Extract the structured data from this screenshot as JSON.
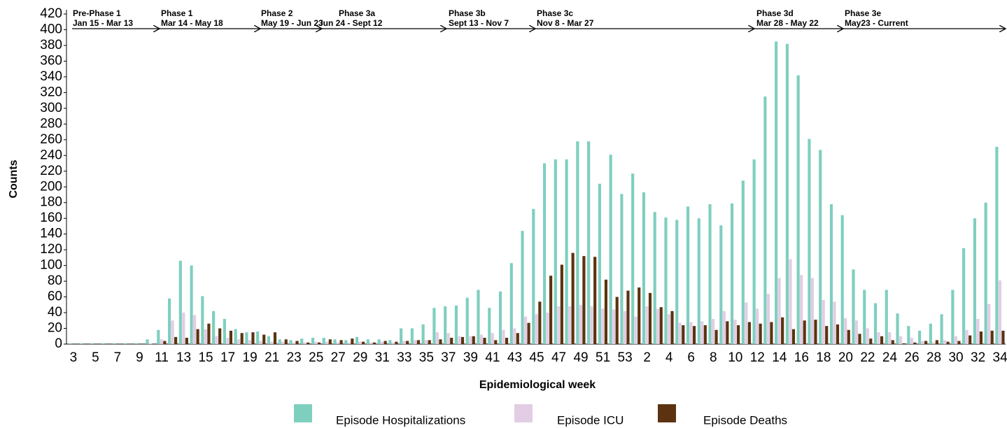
{
  "chart_data": {
    "type": "bar",
    "y_label": "Counts",
    "x_label": "Epidemiological week",
    "categories": [
      "3",
      null,
      "5",
      null,
      "7",
      null,
      "9",
      null,
      "11",
      null,
      "13",
      null,
      "15",
      null,
      "17",
      null,
      "19",
      null,
      "21",
      null,
      "23",
      null,
      "25",
      null,
      "27",
      null,
      "29",
      null,
      "31",
      null,
      "33",
      null,
      "35",
      null,
      "37",
      null,
      "39",
      null,
      "41",
      null,
      "43",
      null,
      "45",
      null,
      "47",
      null,
      "49",
      null,
      "51",
      null,
      "53",
      null,
      "2",
      null,
      "4",
      null,
      "6",
      null,
      "8",
      null,
      "10",
      null,
      "12",
      null,
      "14",
      null,
      "16",
      null,
      "18",
      null,
      "20",
      null,
      "22",
      null,
      "24",
      null,
      "26",
      null,
      "28",
      null,
      "30",
      null,
      "32",
      null,
      "34"
    ],
    "series": [
      {
        "name": "Episode Hospitalizations",
        "color": "#7fcfbf",
        "values": [
          1,
          1,
          1,
          1,
          1,
          1,
          1,
          6,
          18,
          58,
          106,
          100,
          61,
          42,
          32,
          19,
          15,
          16,
          10,
          6,
          5,
          7,
          8,
          8,
          6,
          5,
          9,
          6,
          6,
          5,
          20,
          20,
          25,
          46,
          48,
          49,
          59,
          69,
          46,
          67,
          103,
          144,
          172,
          230,
          235,
          235,
          258,
          258,
          204,
          241,
          191,
          217,
          193,
          168,
          161,
          158,
          175,
          160,
          178,
          151,
          179,
          208,
          235,
          315,
          385,
          382,
          342,
          261,
          247,
          178,
          164,
          95,
          69,
          52,
          69,
          39,
          23,
          17,
          26,
          38,
          69,
          122,
          160,
          180,
          251
        ]
      },
      {
        "name": "Episode ICU",
        "color": "#e2cde4",
        "values": [
          0,
          0,
          0,
          0,
          0,
          0,
          0,
          1,
          6,
          30,
          40,
          37,
          19,
          10,
          8,
          6,
          5,
          4,
          3,
          3,
          2,
          2,
          3,
          3,
          2,
          2,
          3,
          2,
          3,
          2,
          4,
          5,
          5,
          15,
          14,
          10,
          10,
          12,
          14,
          18,
          20,
          35,
          38,
          40,
          48,
          48,
          50,
          48,
          45,
          44,
          42,
          35,
          48,
          45,
          38,
          27,
          28,
          29,
          32,
          42,
          31,
          53,
          45,
          64,
          84,
          108,
          88,
          84,
          56,
          54,
          33,
          30,
          20,
          15,
          15,
          10,
          8,
          4,
          2,
          5,
          10,
          18,
          32,
          51,
          81
        ]
      },
      {
        "name": "Episode Deaths",
        "color": "#5b3310",
        "values": [
          0,
          0,
          0,
          0,
          0,
          0,
          0,
          0,
          4,
          9,
          8,
          19,
          26,
          20,
          17,
          14,
          15,
          12,
          15,
          6,
          4,
          2,
          2,
          6,
          5,
          7,
          3,
          2,
          4,
          3,
          4,
          5,
          5,
          6,
          8,
          9,
          10,
          8,
          5,
          8,
          14,
          27,
          54,
          87,
          101,
          116,
          112,
          111,
          82,
          60,
          68,
          72,
          65,
          47,
          42,
          24,
          23,
          24,
          18,
          29,
          24,
          28,
          26,
          28,
          34,
          19,
          30,
          31,
          23,
          25,
          18,
          13,
          7,
          10,
          5,
          1,
          2,
          4,
          5,
          3,
          4,
          11,
          16,
          17,
          17
        ]
      }
    ],
    "ylim": [
      0,
      420
    ],
    "yticks": [
      0,
      20,
      40,
      60,
      80,
      100,
      120,
      140,
      160,
      180,
      200,
      220,
      240,
      260,
      280,
      300,
      320,
      340,
      360,
      380,
      400,
      420
    ],
    "phases": [
      {
        "label": "Pre-Phase 1",
        "dates": "Jan 15 - Mar 13"
      },
      {
        "label": "Phase 1",
        "dates": "Mar 14 - May 18"
      },
      {
        "label": "Phase 2",
        "dates": "May 19 - Jun 23"
      },
      {
        "label": "Phase 3a",
        "dates": "Jun 24 - Sept 12"
      },
      {
        "label": "Phase 3b",
        "dates": "Sept 13 - Nov 7"
      },
      {
        "label": "Phase 3c",
        "dates": "Nov 8 - Mar 27"
      },
      {
        "label": "Phase 3d",
        "dates": "Mar 28 - May 22"
      },
      {
        "label": "Phase 3e",
        "dates": "May23 - Current"
      }
    ]
  }
}
